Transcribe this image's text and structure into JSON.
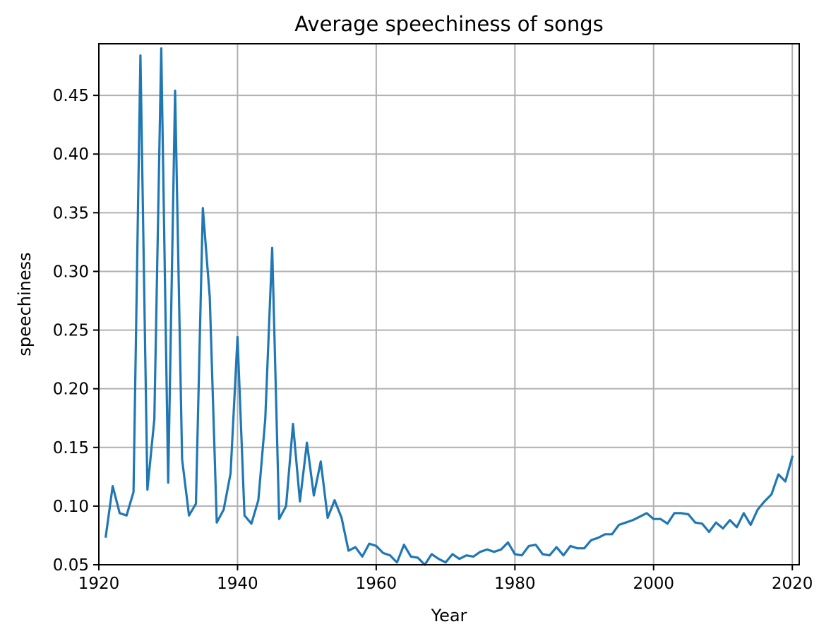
{
  "chart_data": {
    "type": "line",
    "title": "Average speechiness of songs",
    "xlabel": "Year",
    "ylabel": "speechiness",
    "xlim": [
      1920,
      2021
    ],
    "ylim": [
      0.05,
      0.494
    ],
    "xticks": [
      1920,
      1940,
      1960,
      1980,
      2000,
      2020
    ],
    "xtick_labels": [
      "1920",
      "1940",
      "1960",
      "1980",
      "2000",
      "2020"
    ],
    "yticks": [
      0.05,
      0.1,
      0.15,
      0.2,
      0.25,
      0.3,
      0.35,
      0.4,
      0.45
    ],
    "ytick_labels": [
      "0.05",
      "0.10",
      "0.15",
      "0.20",
      "0.25",
      "0.30",
      "0.35",
      "0.40",
      "0.45"
    ],
    "grid": true,
    "legend": "none",
    "line_color": "#1f77b4",
    "series": [
      {
        "x": [
          1921,
          1922,
          1923,
          1924,
          1925,
          1926,
          1927,
          1928,
          1929,
          1930,
          1931,
          1932,
          1933,
          1934,
          1935,
          1936,
          1937,
          1938,
          1939,
          1940,
          1941,
          1942,
          1943,
          1944,
          1945,
          1946,
          1947,
          1948,
          1949,
          1950,
          1951,
          1952,
          1953,
          1954,
          1955,
          1956,
          1957,
          1958,
          1959,
          1960,
          1961,
          1962,
          1963,
          1964,
          1965,
          1966,
          1967,
          1968,
          1969,
          1970,
          1971,
          1972,
          1973,
          1974,
          1975,
          1976,
          1977,
          1978,
          1979,
          1980,
          1981,
          1982,
          1983,
          1984,
          1985,
          1986,
          1987,
          1988,
          1989,
          1990,
          1991,
          1992,
          1993,
          1994,
          1995,
          1996,
          1997,
          1998,
          1999,
          2000,
          2001,
          2002,
          2003,
          2004,
          2005,
          2006,
          2007,
          2008,
          2009,
          2010,
          2011,
          2012,
          2013,
          2014,
          2015,
          2016,
          2017,
          2018,
          2019,
          2020
        ],
        "values": [
          0.074,
          0.117,
          0.094,
          0.092,
          0.112,
          0.484,
          0.114,
          0.174,
          0.49,
          0.12,
          0.454,
          0.14,
          0.092,
          0.102,
          0.354,
          0.278,
          0.086,
          0.097,
          0.128,
          0.244,
          0.092,
          0.085,
          0.105,
          0.174,
          0.32,
          0.089,
          0.1,
          0.17,
          0.104,
          0.154,
          0.109,
          0.138,
          0.09,
          0.105,
          0.09,
          0.062,
          0.065,
          0.057,
          0.068,
          0.066,
          0.06,
          0.058,
          0.052,
          0.067,
          0.057,
          0.056,
          0.05,
          0.059,
          0.055,
          0.052,
          0.059,
          0.055,
          0.058,
          0.057,
          0.061,
          0.063,
          0.061,
          0.063,
          0.069,
          0.059,
          0.058,
          0.066,
          0.067,
          0.059,
          0.058,
          0.065,
          0.058,
          0.066,
          0.064,
          0.064,
          0.071,
          0.073,
          0.076,
          0.076,
          0.084,
          0.086,
          0.088,
          0.091,
          0.094,
          0.089,
          0.089,
          0.085,
          0.094,
          0.094,
          0.093,
          0.086,
          0.085,
          0.078,
          0.086,
          0.081,
          0.088,
          0.082,
          0.094,
          0.084,
          0.097,
          0.104,
          0.11,
          0.127,
          0.121,
          0.142
        ]
      }
    ]
  }
}
